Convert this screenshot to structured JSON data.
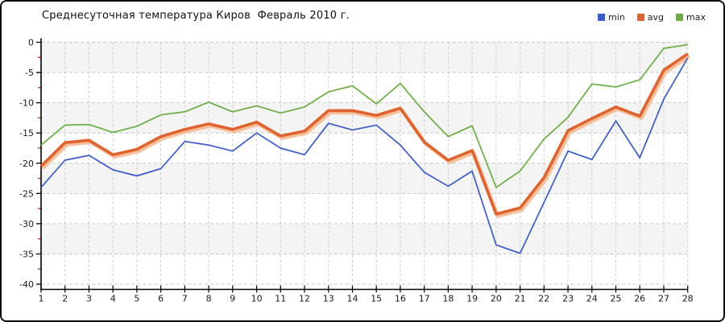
{
  "window": {
    "title": "Среднесуточная температура Киров  Февраль 2010 г."
  },
  "legend": {
    "items": [
      {
        "label": "min"
      },
      {
        "label": "avg"
      },
      {
        "label": "max"
      }
    ]
  },
  "chart_data": {
    "type": "line",
    "title": "Среднесуточная температура Киров  Февраль 2010 г.",
    "xlabel": "",
    "ylabel": "",
    "x": [
      1,
      2,
      3,
      4,
      5,
      6,
      7,
      8,
      9,
      10,
      11,
      12,
      13,
      14,
      15,
      16,
      17,
      18,
      19,
      20,
      21,
      22,
      23,
      24,
      25,
      26,
      27,
      28
    ],
    "ylim": [
      -40,
      0
    ],
    "ytick_step": 5,
    "ytick_minor_step": 2.5,
    "grid": true,
    "grid_style": "dashed",
    "legend_position": "top-right",
    "band_color": "#f4f4f4",
    "grid_color": "#c9c9c9",
    "axis_color": "#000000",
    "minor_tick_color": "#cc2200",
    "series": [
      {
        "name": "min",
        "color": "#3a5bc9",
        "values": [
          -24.0,
          -19.5,
          -18.7,
          -21.1,
          -22.1,
          -20.9,
          -16.4,
          -17.0,
          -18.0,
          -15.0,
          -17.5,
          -18.6,
          -13.4,
          -14.5,
          -13.7,
          -17.0,
          -21.5,
          -23.8,
          -21.3,
          -33.5,
          -34.9,
          -26.5,
          -18.0,
          -19.4,
          -13.0,
          -19.1,
          -9.4,
          -2.6
        ]
      },
      {
        "name": "avg",
        "color": "#e0622d",
        "halo": "#f7c09a",
        "values": [
          -20.5,
          -16.6,
          -16.2,
          -18.6,
          -17.7,
          -15.6,
          -14.4,
          -13.5,
          -14.4,
          -13.2,
          -15.5,
          -14.7,
          -11.3,
          -11.3,
          -12.1,
          -10.9,
          -16.5,
          -19.5,
          -17.9,
          -28.4,
          -27.4,
          -22.4,
          -14.6,
          -12.6,
          -10.7,
          -12.2,
          -4.6,
          -1.9
        ]
      },
      {
        "name": "max",
        "color": "#6aad41",
        "values": [
          -17.0,
          -13.7,
          -13.6,
          -14.9,
          -13.9,
          -12.0,
          -11.5,
          -9.9,
          -11.5,
          -10.5,
          -11.7,
          -10.7,
          -8.2,
          -7.2,
          -10.2,
          -6.8,
          -11.5,
          -15.6,
          -13.8,
          -24.0,
          -21.3,
          -16.0,
          -12.4,
          -6.9,
          -7.4,
          -6.2,
          -1.0,
          -0.4
        ]
      }
    ]
  }
}
